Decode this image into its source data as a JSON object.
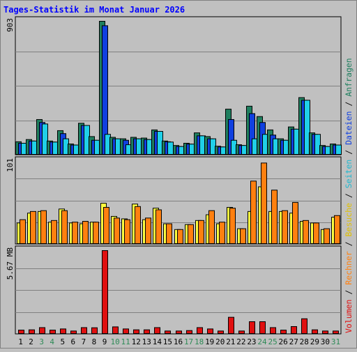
{
  "chart_data": {
    "type": "bar",
    "title": "Tages-Statistik im Monat Januar 2026",
    "categories": [
      "1",
      "2",
      "3",
      "4",
      "5",
      "6",
      "7",
      "8",
      "9",
      "10",
      "11",
      "12",
      "13",
      "14",
      "15",
      "16",
      "17",
      "18",
      "19",
      "20",
      "21",
      "22",
      "23",
      "24",
      "25",
      "26",
      "27",
      "28",
      "29",
      "30",
      "31"
    ],
    "weekend_days": [
      3,
      4,
      10,
      11,
      17,
      18,
      24,
      25,
      31
    ],
    "colors": {
      "background": "#c0c0c0",
      "title": "#0000ff",
      "weekday_label": "#000000",
      "weekend_label": "#2e8b57",
      "anfragen": "#1f7f5f",
      "dateien": "#1040e0",
      "seiten": "#20d0e8",
      "besuche": "#ffff40",
      "rechner": "#ff8010",
      "volumen": "#e01010"
    },
    "panels": [
      {
        "id": "hits",
        "ymax": 903,
        "ymax_label": "903",
        "series": [
          {
            "name": "Anfragen",
            "color": "#1f7f5f",
            "values": [
              90,
              105,
              240,
              95,
              165,
              75,
              215,
              125,
              903,
              120,
              110,
              120,
              115,
              170,
              95,
              65,
              80,
              150,
              125,
              60,
              310,
              70,
              330,
              260,
              170,
              110,
              190,
              388,
              150,
              65,
              75
            ]
          },
          {
            "name": "Dateien",
            "color": "#1040e0",
            "values": [
              80,
              95,
              220,
              88,
              145,
              68,
              200,
              100,
              873,
              110,
              100,
              110,
              105,
              160,
              90,
              58,
              74,
              130,
              110,
              55,
              240,
              65,
              280,
              220,
              135,
              100,
              175,
              370,
              140,
              58,
              68
            ]
          },
          {
            "name": "Seiten",
            "color": "#20d0e8",
            "values": [
              80,
              95,
              210,
              88,
              110,
              68,
              200,
              100,
              140,
              110,
              70,
              110,
              105,
              160,
              88,
              58,
              74,
              130,
              110,
              55,
              100,
              65,
              110,
              140,
              110,
              100,
              175,
              370,
              140,
              58,
              68
            ]
          }
        ]
      },
      {
        "id": "visits",
        "ymax": 101,
        "ymax_label": "101",
        "series": [
          {
            "name": "Besuche",
            "color": "#ffff40",
            "values": [
              26,
              38,
              40,
              27,
              43,
              26,
              25,
              27,
              50,
              34,
              31,
              49,
              30,
              44,
              25,
              18,
              24,
              29,
              36,
              25,
              45,
              19,
              40,
              70,
              40,
              40,
              38,
              28,
              26,
              18,
              33
            ]
          },
          {
            "name": "Rechner",
            "color": "#ff8010",
            "values": [
              30,
              40,
              41,
              29,
              41,
              27,
              28,
              27,
              45,
              32,
              30,
              46,
              32,
              42,
              25,
              18,
              24,
              29,
              41,
              27,
              44,
              19,
              77,
              99,
              66,
              41,
              51,
              29,
              26,
              19,
              35
            ]
          }
        ]
      },
      {
        "id": "volume",
        "ymax": 5.67,
        "ymax_label": "5.67 MB",
        "series": [
          {
            "name": "Volumen",
            "color": "#e01010",
            "values": [
              0.28,
              0.3,
              0.45,
              0.28,
              0.36,
              0.22,
              0.45,
              0.44,
              5.67,
              0.5,
              0.36,
              0.3,
              0.3,
              0.45,
              0.22,
              0.22,
              0.25,
              0.45,
              0.36,
              0.22,
              1.15,
              0.22,
              0.85,
              0.85,
              0.45,
              0.28,
              0.52,
              1.05,
              0.3,
              0.22,
              0.22
            ]
          }
        ]
      }
    ],
    "legend_right": [
      {
        "text": "Volumen",
        "color": "#e01010"
      },
      {
        "text": " / ",
        "color": "#000000"
      },
      {
        "text": "Rechner",
        "color": "#ff8010"
      },
      {
        "text": " / ",
        "color": "#000000"
      },
      {
        "text": "Besuche",
        "color": "#e0c000"
      },
      {
        "text": " / ",
        "color": "#000000"
      },
      {
        "text": "Seiten",
        "color": "#20b8d0"
      },
      {
        "text": " / ",
        "color": "#000000"
      },
      {
        "text": "Dateien",
        "color": "#1040e0"
      },
      {
        "text": " / ",
        "color": "#000000"
      },
      {
        "text": "Anfragen",
        "color": "#1f7f5f"
      }
    ],
    "grid": true,
    "legend_position": "right"
  }
}
